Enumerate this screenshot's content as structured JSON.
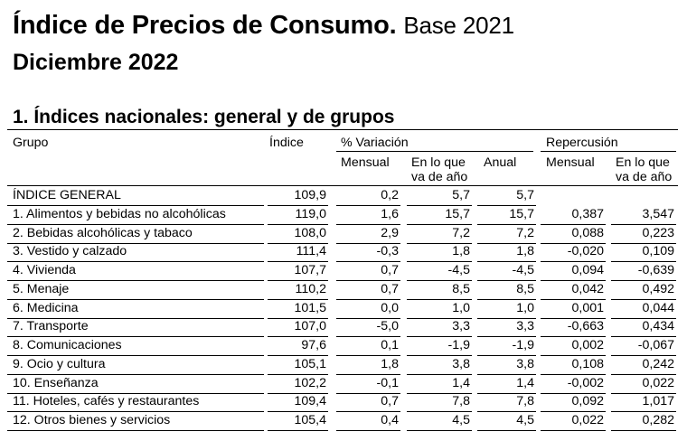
{
  "title": "Índice de Precios de Consumo.",
  "title_base": "Base 2021",
  "subtitle": "Diciembre 2022",
  "section_title": "1. Índices nacionales: general y de grupos",
  "headers": {
    "grupo": "Grupo",
    "indice": "Índice",
    "variacion": "% Variación",
    "repercusion": "Repercusión",
    "mensual": "Mensual",
    "en_lo_que_1": "En lo que",
    "en_lo_que_2": "va de año",
    "anual": "Anual",
    "rep_mensual": "Mensual",
    "rep_en_lo_que_1": "En lo que",
    "rep_en_lo_que_2": "va de año"
  },
  "rows": [
    {
      "name": "ÍNDICE GENERAL",
      "indice": "109,9",
      "mensual": "0,2",
      "ano": "5,7",
      "anual": "5,7",
      "rep_mensual": "",
      "rep_ano": ""
    },
    {
      "name": "1. Alimentos y bebidas no alcohólicas",
      "indice": "119,0",
      "mensual": "1,6",
      "ano": "15,7",
      "anual": "15,7",
      "rep_mensual": "0,387",
      "rep_ano": "3,547"
    },
    {
      "name": "2. Bebidas alcohólicas y tabaco",
      "indice": "108,0",
      "mensual": "2,9",
      "ano": "7,2",
      "anual": "7,2",
      "rep_mensual": "0,088",
      "rep_ano": "0,223"
    },
    {
      "name": "3. Vestido y calzado",
      "indice": "111,4",
      "mensual": "-0,3",
      "ano": "1,8",
      "anual": "1,8",
      "rep_mensual": "-0,020",
      "rep_ano": "0,109"
    },
    {
      "name": "4. Vivienda",
      "indice": "107,7",
      "mensual": "0,7",
      "ano": "-4,5",
      "anual": "-4,5",
      "rep_mensual": "0,094",
      "rep_ano": "-0,639"
    },
    {
      "name": "5. Menaje",
      "indice": "110,2",
      "mensual": "0,7",
      "ano": "8,5",
      "anual": "8,5",
      "rep_mensual": "0,042",
      "rep_ano": "0,492"
    },
    {
      "name": "6. Medicina",
      "indice": "101,5",
      "mensual": "0,0",
      "ano": "1,0",
      "anual": "1,0",
      "rep_mensual": "0,001",
      "rep_ano": "0,044"
    },
    {
      "name": "7. Transporte",
      "indice": "107,0",
      "mensual": "-5,0",
      "ano": "3,3",
      "anual": "3,3",
      "rep_mensual": "-0,663",
      "rep_ano": "0,434"
    },
    {
      "name": "8. Comunicaciones",
      "indice": "97,6",
      "mensual": "0,1",
      "ano": "-1,9",
      "anual": "-1,9",
      "rep_mensual": "0,002",
      "rep_ano": "-0,067"
    },
    {
      "name": "9. Ocio y cultura",
      "indice": "105,1",
      "mensual": "1,8",
      "ano": "3,8",
      "anual": "3,8",
      "rep_mensual": "0,108",
      "rep_ano": "0,242"
    },
    {
      "name": "10. Enseñanza",
      "indice": "102,2",
      "mensual": "-0,1",
      "ano": "1,4",
      "anual": "1,4",
      "rep_mensual": "-0,002",
      "rep_ano": "0,022"
    },
    {
      "name": "11. Hoteles, cafés y restaurantes",
      "indice": "109,4",
      "mensual": "0,7",
      "ano": "7,8",
      "anual": "7,8",
      "rep_mensual": "0,092",
      "rep_ano": "1,017"
    },
    {
      "name": "12. Otros bienes y servicios",
      "indice": "105,4",
      "mensual": "0,4",
      "ano": "4,5",
      "anual": "4,5",
      "rep_mensual": "0,022",
      "rep_ano": "0,282"
    }
  ]
}
